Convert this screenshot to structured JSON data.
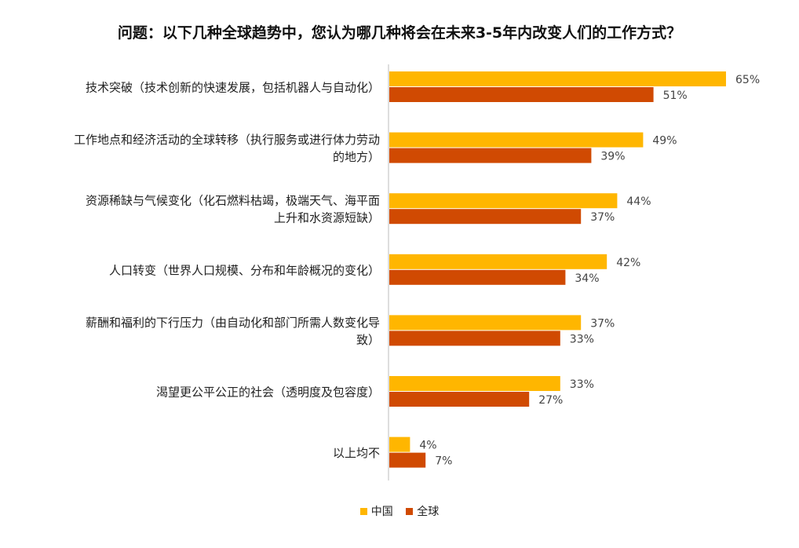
{
  "chart_data": {
    "type": "bar",
    "orientation": "horizontal",
    "title": "问题：以下几种全球趋势中，您认为哪几种将会在未来3-5年内改变人们的工作方式？",
    "categories": [
      [
        "技术突破（技术创新的快速发展，包括机器人与自动化）"
      ],
      [
        "工作地点和经济活动的全球转移（执行服务或进行体力劳动",
        "的地方）"
      ],
      [
        "资源稀缺与气候变化（化石燃料枯竭，极端天气、海平面",
        "上升和水资源短缺）"
      ],
      [
        "人口转变（世界人口规模、分布和年龄概况的变化）"
      ],
      [
        "薪酬和福利的下行压力（由自动化和部门所需人数变化导",
        "致）"
      ],
      [
        "渴望更公平公正的社会（透明度及包容度）"
      ],
      [
        "以上均不"
      ]
    ],
    "series": [
      {
        "name": "中国",
        "color": "#FFB600",
        "values": [
          65,
          49,
          44,
          42,
          37,
          33,
          4
        ]
      },
      {
        "name": "全球",
        "color": "#D04A02",
        "values": [
          51,
          39,
          37,
          34,
          33,
          27,
          7
        ]
      }
    ],
    "value_suffix": "%",
    "xlim": [
      0,
      100
    ],
    "grid": false,
    "legend_position": "bottom-center"
  }
}
